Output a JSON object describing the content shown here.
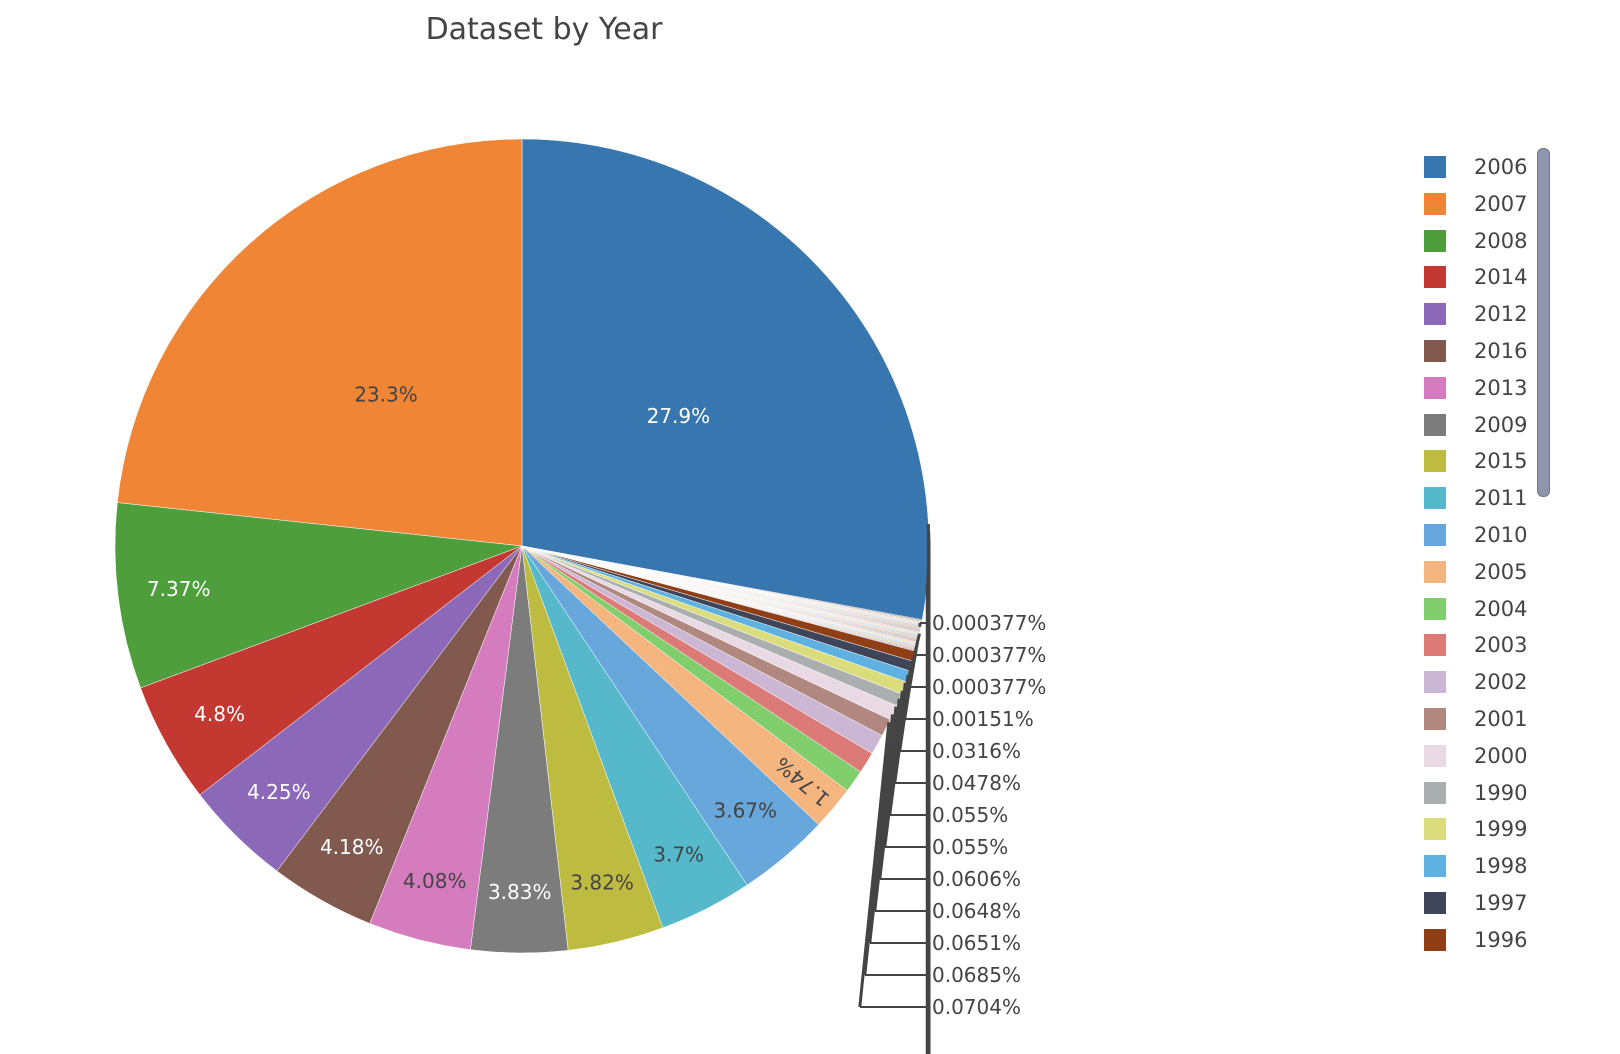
{
  "chart_data": {
    "type": "pie",
    "title": "Dataset by Year",
    "direction": "counterclockwise",
    "legend_position": "right",
    "slices": [
      {
        "label": "2006",
        "value": 27.9,
        "text": "27.9%",
        "color": "#3876af"
      },
      {
        "label": "2007",
        "value": 23.3,
        "text": "23.3%",
        "color": "#ef8535"
      },
      {
        "label": "2008",
        "value": 7.37,
        "text": "7.37%",
        "color": "#4f9e3c"
      },
      {
        "label": "2014",
        "value": 4.8,
        "text": "4.8%",
        "color": "#c43832"
      },
      {
        "label": "2012",
        "value": 4.25,
        "text": "4.25%",
        "color": "#8c68b8"
      },
      {
        "label": "2016",
        "value": 4.18,
        "text": "4.18%",
        "color": "#82594e"
      },
      {
        "label": "2013",
        "value": 4.08,
        "text": "4.08%",
        "color": "#d57cbf"
      },
      {
        "label": "2009",
        "value": 3.83,
        "text": "3.83%",
        "color": "#7c7c7c"
      },
      {
        "label": "2015",
        "value": 3.82,
        "text": "3.82%",
        "color": "#bdbc40"
      },
      {
        "label": "2011",
        "value": 3.7,
        "text": "3.7%",
        "color": "#56b9cb"
      },
      {
        "label": "2010",
        "value": 3.67,
        "text": "3.67%",
        "color": "#68a7dc"
      },
      {
        "label": "2005",
        "value": 1.74,
        "text": "1.74%",
        "color": "#f4b57f"
      },
      {
        "label": "2004",
        "value": 0.9,
        "text": "",
        "color": "#80cf6c"
      },
      {
        "label": "2003",
        "value": 0.85,
        "text": "",
        "color": "#dc7a77"
      },
      {
        "label": "2002",
        "value": 0.8,
        "text": "",
        "color": "#cbb6d4"
      },
      {
        "label": "2001",
        "value": 0.7,
        "text": "",
        "color": "#b08880"
      },
      {
        "label": "2000",
        "value": 0.6,
        "text": "",
        "color": "#e9d9e4"
      },
      {
        "label": "1990",
        "value": 0.5,
        "text": "",
        "color": "#a9aeaf"
      },
      {
        "label": "1999",
        "value": 0.5,
        "text": "",
        "color": "#dbdc7c"
      },
      {
        "label": "1998",
        "value": 0.45,
        "text": "",
        "color": "#5fb1e2"
      },
      {
        "label": "1997",
        "value": 0.4,
        "text": "",
        "color": "#3e4558"
      },
      {
        "label": "1996",
        "value": 0.4,
        "text": "",
        "color": "#8f3e16"
      }
    ],
    "outside_labels": [
      "0.000377%",
      "0.000377%",
      "0.000377%",
      "0.00151%",
      "0.0316%",
      "0.0478%",
      "0.055%",
      "0.055%",
      "0.0606%",
      "0.0648%",
      "0.0651%",
      "0.0685%",
      "0.0704%"
    ],
    "minor_colors": [
      "#3c3c3c",
      "#8c68b8",
      "#c43832",
      "#4f9e3c",
      "#ef8535",
      "#3876af",
      "#d57cbf",
      "#56b9cb",
      "#bdbc40",
      "#f4b57f",
      "#dc7a77",
      "#a9aeaf",
      "#82594e"
    ]
  }
}
